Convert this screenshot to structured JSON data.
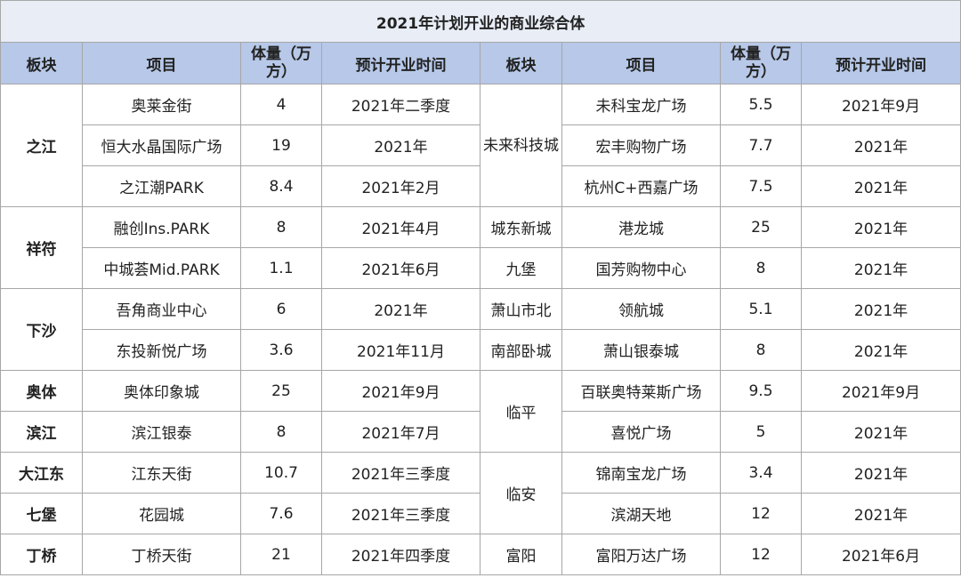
{
  "title": "2021年计划开业的商业综合体",
  "headers": [
    "板块",
    "项目",
    "体量（万方）",
    "预计开业时间",
    "板块",
    "项目",
    "体量（万方）",
    "预计开业时间"
  ],
  "left": {
    "districts": [
      "之江",
      "祥符",
      "下沙",
      "奥体",
      "滨江",
      "大江东",
      "七堡",
      "丁桥"
    ],
    "rows": [
      {
        "project": "奥莱金街",
        "volume": "4",
        "date": "2021年二季度"
      },
      {
        "project": "恒大水晶国际广场",
        "volume": "19",
        "date": "2021年"
      },
      {
        "project": "之江潮PARK",
        "volume": "8.4",
        "date": "2021年2月"
      },
      {
        "project": "融创Ins.PARK",
        "volume": "8",
        "date": "2021年4月"
      },
      {
        "project": "中城荟Mid.PARK",
        "volume": "1.1",
        "date": "2021年6月"
      },
      {
        "project": "吾角商业中心",
        "volume": "6",
        "date": "2021年"
      },
      {
        "project": "东投新悦广场",
        "volume": "3.6",
        "date": "2021年11月"
      },
      {
        "project": "奥体印象城",
        "volume": "25",
        "date": "2021年9月"
      },
      {
        "project": "滨江银泰",
        "volume": "8",
        "date": "2021年7月"
      },
      {
        "project": "江东天街",
        "volume": "10.7",
        "date": "2021年三季度"
      },
      {
        "project": "花园城",
        "volume": "7.6",
        "date": "2021年三季度"
      },
      {
        "project": "丁桥天街",
        "volume": "21",
        "date": "2021年四季度"
      }
    ]
  },
  "right": {
    "districts": [
      "未来科技城",
      "城东新城",
      "九堡",
      "萧山市北",
      "南部卧城",
      "临平",
      "临安",
      "富阳"
    ],
    "rows": [
      {
        "project": "未科宝龙广场",
        "volume": "5.5",
        "date": "2021年9月"
      },
      {
        "project": "宏丰购物广场",
        "volume": "7.7",
        "date": "2021年"
      },
      {
        "project": "杭州C+西嘉广场",
        "volume": "7.5",
        "date": "2021年"
      },
      {
        "project": "港龙城",
        "volume": "25",
        "date": "2021年"
      },
      {
        "project": "国芳购物中心",
        "volume": "8",
        "date": "2021年"
      },
      {
        "project": "领航城",
        "volume": "5.1",
        "date": "2021年"
      },
      {
        "project": "萧山银泰城",
        "volume": "8",
        "date": "2021年"
      },
      {
        "project": "百联奥特莱斯广场",
        "volume": "9.5",
        "date": "2021年9月"
      },
      {
        "project": "喜悦广场",
        "volume": "5",
        "date": "2021年"
      },
      {
        "project": "锦南宝龙广场",
        "volume": "3.4",
        "date": "2021年"
      },
      {
        "project": "滨湖天地",
        "volume": "12",
        "date": "2021年"
      },
      {
        "project": "富阳万达广场",
        "volume": "12",
        "date": "2021年6月"
      }
    ]
  }
}
